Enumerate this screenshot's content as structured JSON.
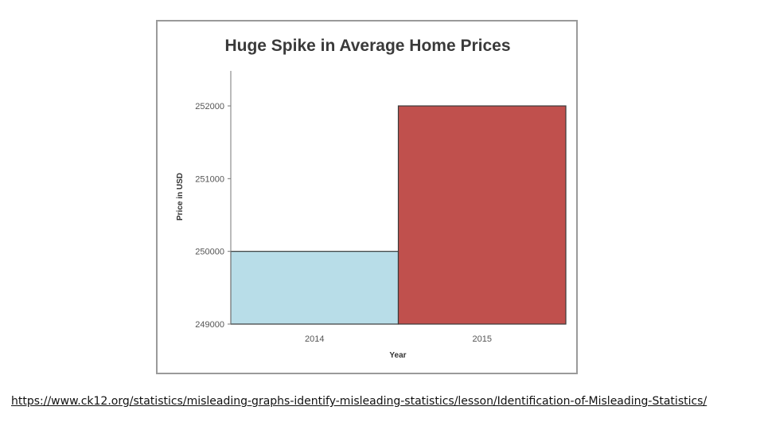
{
  "chart_data": {
    "type": "bar",
    "title": "Huge Spike in Average Home Prices",
    "xlabel": "Year",
    "ylabel": "Price in USD",
    "categories": [
      "2014",
      "2015"
    ],
    "values": [
      250000,
      252000
    ],
    "ylim": [
      249000,
      252000
    ],
    "yticks": [
      "249000",
      "250000",
      "251000",
      "252000"
    ],
    "bar_colors": [
      "#b8dde8",
      "#c0504d"
    ],
    "grid": false,
    "legend": "none"
  },
  "source": {
    "url": "https://www.ck12.org/statistics/misleading-graphs-identify-misleading-statistics/lesson/Identification-of-Misleading-Statistics/"
  }
}
